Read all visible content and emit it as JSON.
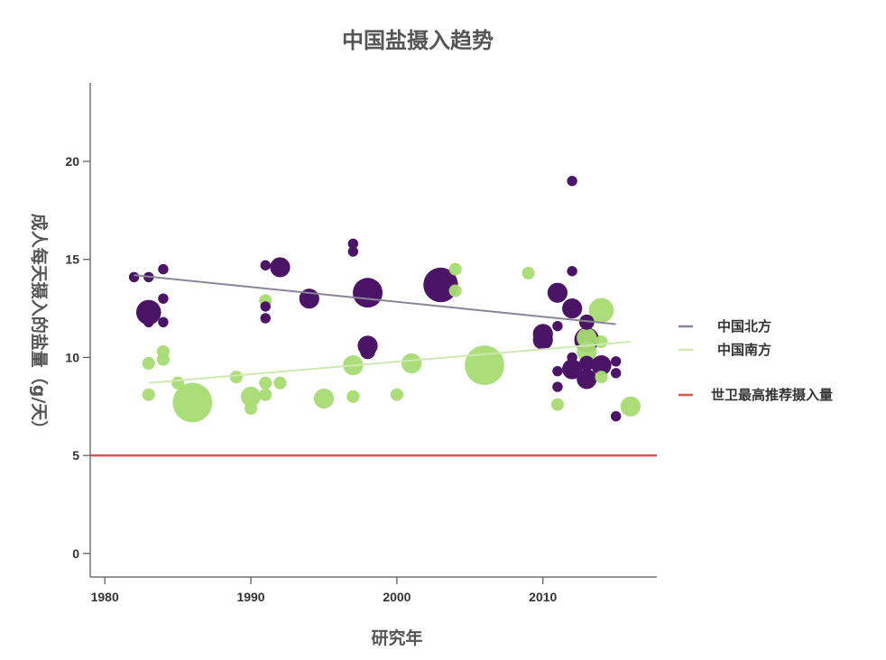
{
  "chart_data": {
    "type": "scatter",
    "title": "中国盐摄入趋势",
    "xlabel": "研究年",
    "ylabel": "成人每天摄入的盐量（g/天）",
    "xlim": [
      1979,
      2017.8
    ],
    "ylim": [
      -1.2,
      24
    ],
    "xticks": [
      1980,
      1990,
      2000,
      2010
    ],
    "yticks": [
      0,
      5,
      10,
      15,
      20
    ],
    "grid": false,
    "legend_position": "right",
    "colors": {
      "north": "#4b1466",
      "south": "#a6dc72",
      "north_trend": "#8c8499",
      "south_trend": "#cfe8b2",
      "who": "#d9534f",
      "axis": "#555555"
    },
    "legend": [
      {
        "label": "中国北方",
        "color": "#8c8499",
        "kind": "line"
      },
      {
        "label": "中国南方",
        "color": "#cfe8b2",
        "kind": "line"
      },
      {
        "label": "世卫最高推荐摄入量",
        "color": "#d9534f",
        "kind": "line"
      }
    ],
    "series": [
      {
        "name": "中国北方",
        "color": "#4b1466",
        "points": [
          {
            "x": 1982,
            "y": 14.1,
            "size": 1
          },
          {
            "x": 1983,
            "y": 14.1,
            "size": 1
          },
          {
            "x": 1983,
            "y": 12.3,
            "size": 4
          },
          {
            "x": 1983,
            "y": 11.8,
            "size": 1
          },
          {
            "x": 1984,
            "y": 14.5,
            "size": 1
          },
          {
            "x": 1984,
            "y": 13.0,
            "size": 1
          },
          {
            "x": 1984,
            "y": 11.8,
            "size": 1
          },
          {
            "x": 1991,
            "y": 14.7,
            "size": 1
          },
          {
            "x": 1991,
            "y": 12.6,
            "size": 1
          },
          {
            "x": 1991,
            "y": 12.0,
            "size": 1
          },
          {
            "x": 1992,
            "y": 14.6,
            "size": 3
          },
          {
            "x": 1994,
            "y": 13.0,
            "size": 3
          },
          {
            "x": 1997,
            "y": 15.8,
            "size": 1
          },
          {
            "x": 1997,
            "y": 15.4,
            "size": 1
          },
          {
            "x": 1998,
            "y": 13.3,
            "size": 5
          },
          {
            "x": 1998,
            "y": 10.6,
            "size": 3
          },
          {
            "x": 1998,
            "y": 10.3,
            "size": 2
          },
          {
            "x": 2003,
            "y": 13.7,
            "size": 6
          },
          {
            "x": 2010,
            "y": 11.2,
            "size": 3
          },
          {
            "x": 2010,
            "y": 10.9,
            "size": 3
          },
          {
            "x": 2011,
            "y": 13.3,
            "size": 3
          },
          {
            "x": 2011,
            "y": 11.6,
            "size": 1
          },
          {
            "x": 2011,
            "y": 9.3,
            "size": 1
          },
          {
            "x": 2011,
            "y": 8.5,
            "size": 1
          },
          {
            "x": 2012,
            "y": 19.0,
            "size": 1
          },
          {
            "x": 2012,
            "y": 14.4,
            "size": 1
          },
          {
            "x": 2012,
            "y": 12.5,
            "size": 3
          },
          {
            "x": 2012,
            "y": 9.4,
            "size": 3
          },
          {
            "x": 2012,
            "y": 10.0,
            "size": 1
          },
          {
            "x": 2013,
            "y": 11.8,
            "size": 2
          },
          {
            "x": 2013,
            "y": 10.9,
            "size": 4
          },
          {
            "x": 2013,
            "y": 9.7,
            "size": 2
          },
          {
            "x": 2013,
            "y": 8.9,
            "size": 3
          },
          {
            "x": 2014,
            "y": 9.6,
            "size": 3
          },
          {
            "x": 2015,
            "y": 9.8,
            "size": 1
          },
          {
            "x": 2015,
            "y": 9.2,
            "size": 1
          },
          {
            "x": 2015,
            "y": 7.0,
            "size": 1
          }
        ]
      },
      {
        "name": "中国南方",
        "color": "#a6dc72",
        "points": [
          {
            "x": 1983,
            "y": 9.7,
            "size": 1.5
          },
          {
            "x": 1983,
            "y": 8.1,
            "size": 1.5
          },
          {
            "x": 1984,
            "y": 10.3,
            "size": 1.5
          },
          {
            "x": 1984,
            "y": 9.9,
            "size": 1.5
          },
          {
            "x": 1985,
            "y": 8.7,
            "size": 1.5
          },
          {
            "x": 1986,
            "y": 7.7,
            "size": 7
          },
          {
            "x": 1989,
            "y": 9.0,
            "size": 1.5
          },
          {
            "x": 1990,
            "y": 8.0,
            "size": 3
          },
          {
            "x": 1990,
            "y": 7.4,
            "size": 1.5
          },
          {
            "x": 1991,
            "y": 12.9,
            "size": 1.5
          },
          {
            "x": 1991,
            "y": 8.7,
            "size": 1.5
          },
          {
            "x": 1991,
            "y": 8.1,
            "size": 1.5
          },
          {
            "x": 1992,
            "y": 8.7,
            "size": 1.5
          },
          {
            "x": 1995,
            "y": 7.9,
            "size": 3
          },
          {
            "x": 1997,
            "y": 9.6,
            "size": 3
          },
          {
            "x": 1997,
            "y": 8.0,
            "size": 1.5
          },
          {
            "x": 2000,
            "y": 8.1,
            "size": 1.5
          },
          {
            "x": 2001,
            "y": 9.7,
            "size": 3
          },
          {
            "x": 2004,
            "y": 14.5,
            "size": 1.5
          },
          {
            "x": 2004,
            "y": 13.4,
            "size": 1.5
          },
          {
            "x": 2006,
            "y": 9.6,
            "size": 7
          },
          {
            "x": 2009,
            "y": 14.3,
            "size": 1.5
          },
          {
            "x": 2011,
            "y": 7.6,
            "size": 1.5
          },
          {
            "x": 2013,
            "y": 11.0,
            "size": 3
          },
          {
            "x": 2013,
            "y": 10.3,
            "size": 3
          },
          {
            "x": 2014,
            "y": 12.4,
            "size": 4
          },
          {
            "x": 2014,
            "y": 10.8,
            "size": 1.5
          },
          {
            "x": 2014,
            "y": 9.0,
            "size": 1.5
          },
          {
            "x": 2016,
            "y": 7.5,
            "size": 3
          }
        ]
      }
    ],
    "trend_lines": [
      {
        "name": "中国北方",
        "x": [
          1982,
          2015
        ],
        "y": [
          14.2,
          11.7
        ],
        "color": "#8c8499"
      },
      {
        "name": "中国南方",
        "x": [
          1983,
          2016
        ],
        "y": [
          8.7,
          10.8
        ],
        "color": "#cfe8b2"
      }
    ],
    "reference_line": {
      "name": "世卫最高推荐摄入量",
      "y": 5,
      "color": "#d9534f"
    }
  }
}
